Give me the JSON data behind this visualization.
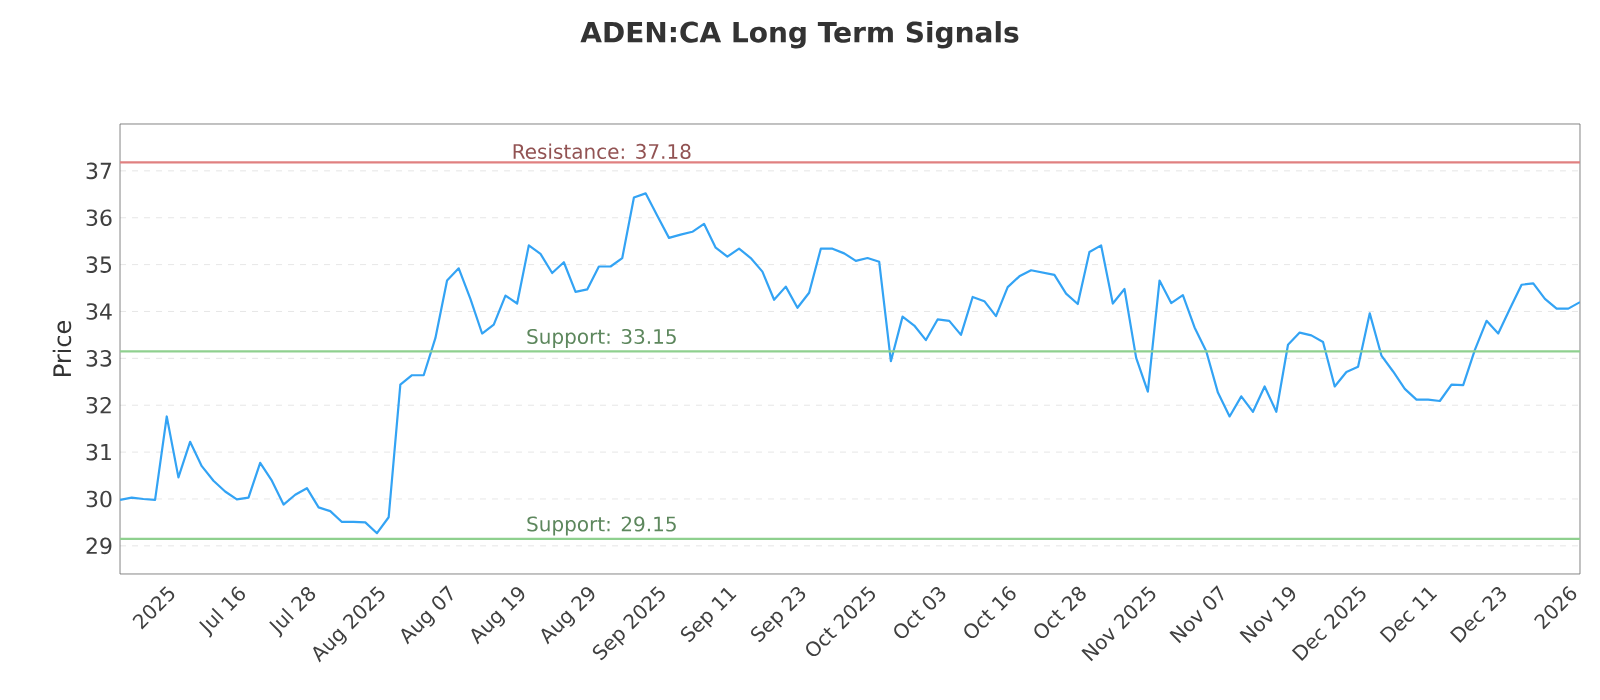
{
  "chart_data": {
    "type": "line",
    "title": "ADEN:CA Long Term Signals",
    "ylabel": "Price",
    "categories": [
      null,
      null,
      null,
      null,
      "2025",
      null,
      null,
      null,
      null,
      null,
      "Jul 16",
      null,
      null,
      null,
      null,
      null,
      "Jul 28",
      null,
      null,
      null,
      null,
      null,
      "Aug 2025",
      null,
      null,
      null,
      null,
      null,
      "Aug 07",
      null,
      null,
      null,
      null,
      null,
      "Aug 19",
      null,
      null,
      null,
      null,
      null,
      "Aug 29",
      null,
      null,
      null,
      null,
      null,
      "Sep 2025",
      null,
      null,
      null,
      null,
      null,
      "Sep 11",
      null,
      null,
      null,
      null,
      null,
      "Sep 23",
      null,
      null,
      null,
      null,
      null,
      "Oct 2025",
      null,
      null,
      null,
      null,
      null,
      "Oct 03",
      null,
      null,
      null,
      null,
      null,
      "Oct 16",
      null,
      null,
      null,
      null,
      null,
      "Oct 28",
      null,
      null,
      null,
      null,
      null,
      "Nov 2025",
      null,
      null,
      null,
      null,
      null,
      "Nov 07",
      null,
      null,
      null,
      null,
      null,
      "Nov 19",
      null,
      null,
      null,
      null,
      null,
      "Dec 2025",
      null,
      null,
      null,
      null,
      null,
      "Dec 11",
      null,
      null,
      null,
      null,
      null,
      "Dec 23",
      null,
      null,
      null,
      null,
      null,
      "2026",
      null
    ],
    "series": [
      {
        "color": "#33a3f4",
        "values": [
          29.98,
          30.03,
          30.0,
          29.98,
          31.76,
          30.46,
          31.22,
          30.7,
          30.39,
          30.16,
          29.99,
          30.03,
          30.77,
          30.39,
          29.88,
          30.09,
          30.23,
          29.82,
          29.74,
          29.51,
          29.51,
          29.5,
          29.27,
          29.61,
          32.44,
          32.64,
          32.64,
          33.43,
          34.66,
          34.92,
          34.27,
          33.53,
          33.72,
          34.34,
          34.17,
          35.41,
          35.23,
          34.82,
          35.05,
          34.42,
          34.47,
          34.96,
          34.96,
          35.14,
          36.43,
          36.52,
          36.04,
          35.57,
          35.64,
          35.7,
          35.87,
          35.36,
          35.17,
          35.34,
          35.14,
          34.85,
          34.25,
          34.53,
          34.08,
          34.4,
          35.34,
          35.34,
          35.24,
          35.08,
          35.14,
          35.06,
          32.94,
          33.89,
          33.7,
          33.39,
          33.83,
          33.8,
          33.5,
          34.31,
          34.22,
          33.9,
          34.52,
          34.75,
          34.88,
          34.83,
          34.78,
          34.38,
          34.16,
          35.27,
          35.41,
          34.17,
          34.48,
          33.01,
          32.29,
          34.66,
          34.18,
          34.35,
          33.66,
          33.15,
          32.27,
          31.76,
          32.19,
          31.86,
          32.4,
          31.86,
          33.29,
          33.55,
          33.49,
          33.35,
          32.4,
          32.71,
          32.82,
          33.96,
          33.06,
          32.72,
          32.35,
          32.12,
          32.12,
          32.09,
          32.44,
          32.43,
          33.18,
          33.8,
          33.53,
          34.06,
          34.57,
          34.6,
          34.27,
          34.06,
          34.06,
          34.2
        ]
      }
    ],
    "ylim": [
      28.4,
      38.0
    ],
    "yticks": [
      29,
      30,
      31,
      32,
      33,
      34,
      35,
      36,
      37
    ],
    "grid": "y",
    "ref_lines": [
      {
        "axis": "y",
        "value": 37.18,
        "label": "Resistance: 37.18",
        "color": "#e08080"
      },
      {
        "axis": "y",
        "value": 33.15,
        "label": "Support: 33.15",
        "color": "#8fd08f"
      },
      {
        "axis": "y",
        "value": 29.15,
        "label": "Support: 29.15",
        "color": "#8fd08f"
      }
    ]
  }
}
